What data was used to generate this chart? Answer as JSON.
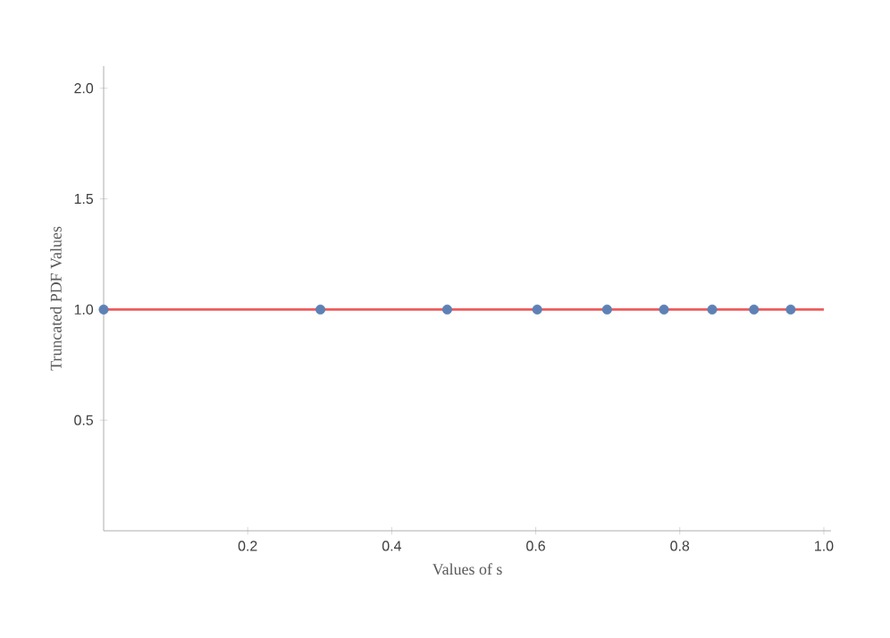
{
  "chart_data": {
    "type": "scatter",
    "xlabel": "Values of s",
    "ylabel": "Truncated PDF Values",
    "xlim": [
      0,
      1.01
    ],
    "ylim": [
      0,
      2.1
    ],
    "xticks": [
      0.2,
      0.4,
      0.6,
      0.8,
      {
        "value": 1.0,
        "label": "1.0"
      }
    ],
    "yticks": [
      0.5,
      {
        "value": 1.0,
        "label": "1.0"
      },
      1.5,
      {
        "value": 2.0,
        "label": "2.0"
      }
    ],
    "series": [
      {
        "type": "line",
        "marker": "none",
        "color": "#ee5b5b",
        "x": [
          0,
          1.0
        ],
        "values": [
          1,
          1
        ]
      },
      {
        "marker": "circle",
        "color": "#5e81b5",
        "x": [
          0,
          0.301,
          0.477,
          0.602,
          0.699,
          0.778,
          0.845,
          0.903,
          0.954
        ],
        "values": [
          1,
          1,
          1,
          1,
          1,
          1,
          1,
          1,
          1
        ]
      }
    ],
    "grid": false
  }
}
